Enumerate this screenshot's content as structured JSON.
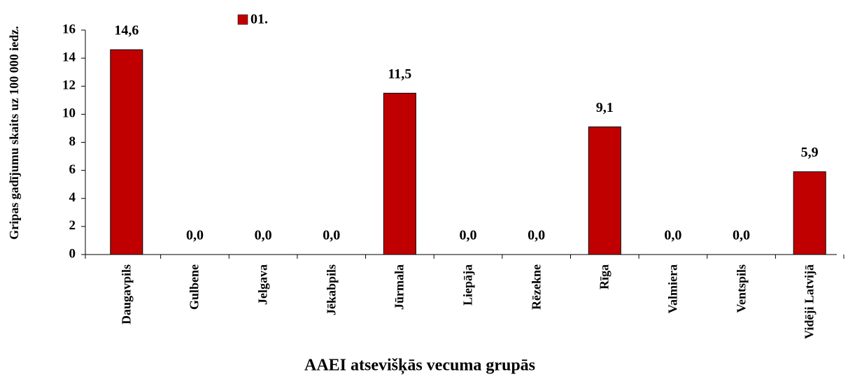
{
  "chart_data": {
    "type": "bar",
    "y_label": "Gripas gadījumu skaits uz 100 000 iedz.",
    "x_label": "AAEI atsevišķās vecuma grupās",
    "categories": [
      "Daugavpils",
      "Gulbene",
      "Jelgava",
      "Jēkabpils",
      "Jūrmala",
      "Liepāja",
      "Rēzekne",
      "Rīga",
      "Valmiera",
      "Ventspils",
      "Vidēji Latvijā"
    ],
    "series": [
      {
        "name": "01.",
        "color": "#c00000",
        "values": [
          14.6,
          0,
          0,
          0,
          11.5,
          0,
          0,
          9.1,
          0,
          0,
          5.9
        ],
        "value_labels": [
          "14,6",
          "0,0",
          "0,0",
          "0,0",
          "11,5",
          "0,0",
          "0,0",
          "9,1",
          "0,0",
          "0,0",
          "5,9"
        ]
      }
    ],
    "ylim": [
      0,
      16
    ],
    "yticks": [
      0,
      2,
      4,
      6,
      8,
      10,
      12,
      14,
      16
    ],
    "legend": "top"
  }
}
